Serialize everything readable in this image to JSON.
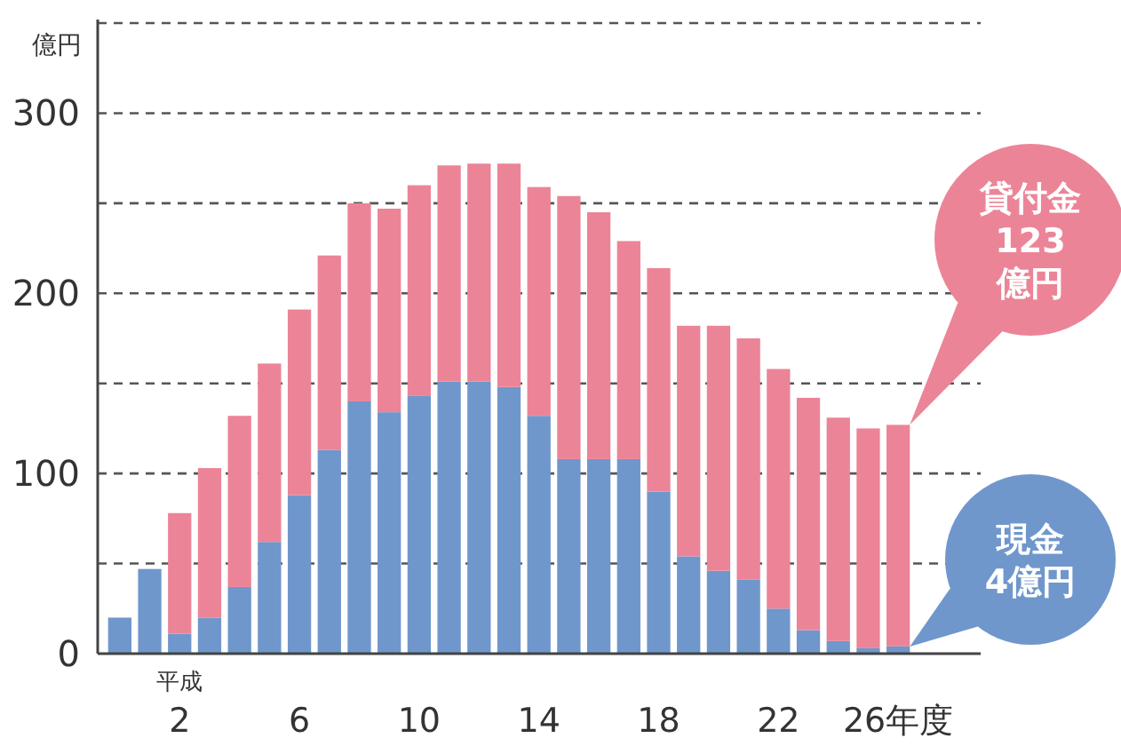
{
  "chart_data": {
    "type": "bar",
    "stacked": true,
    "ylabel": "億円",
    "categories": [
      null,
      null,
      "2",
      null,
      null,
      null,
      "6",
      null,
      null,
      null,
      "10",
      null,
      null,
      null,
      "14",
      null,
      null,
      null,
      "18",
      null,
      null,
      null,
      "22",
      null,
      null,
      null,
      "26年度"
    ],
    "series": [
      {
        "color": "#6f97cc",
        "values": [
          20,
          47,
          11,
          20,
          37,
          62,
          88,
          113,
          140,
          134,
          143,
          151,
          151,
          148,
          132,
          108,
          108,
          108,
          90,
          54,
          46,
          41,
          25,
          13,
          7,
          3,
          4
        ]
      },
      {
        "color": "#ec8497",
        "values": [
          0,
          0,
          67,
          83,
          95,
          99,
          103,
          108,
          110,
          113,
          117,
          120,
          121,
          124,
          127,
          146,
          137,
          121,
          124,
          128,
          136,
          134,
          133,
          129,
          124,
          122,
          123
        ]
      }
    ],
    "ylim": [
      0,
      350
    ],
    "yticks": [
      0,
      {
        "value": 50,
        "label": null
      },
      100,
      {
        "value": 150,
        "label": null
      },
      200,
      {
        "value": 250,
        "label": null
      },
      300,
      {
        "value": 350,
        "label": null
      }
    ],
    "grid": "y",
    "annotations": [
      "平成",
      "現金\n4億円",
      "貸付金\n123\n億円"
    ]
  }
}
